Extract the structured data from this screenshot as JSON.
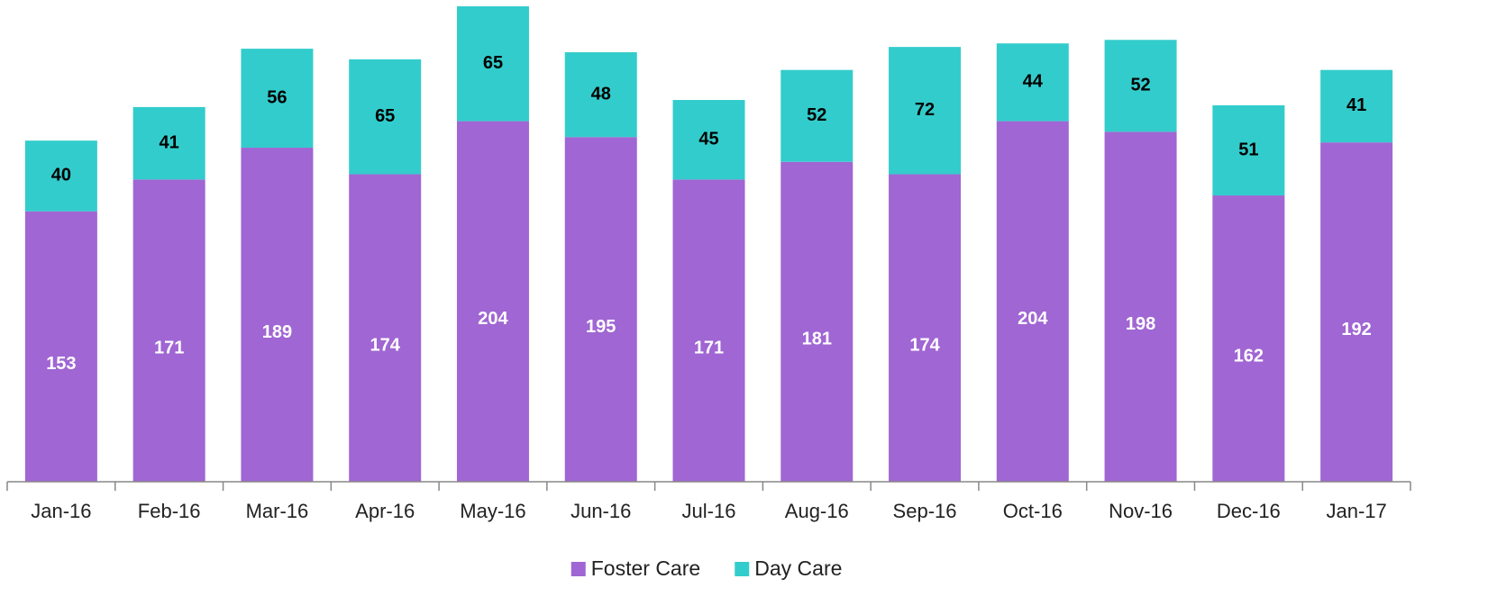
{
  "chart_data": {
    "type": "stacked_bar",
    "categories": [
      "Jan-16",
      "Feb-16",
      "Mar-16",
      "Apr-16",
      "May-16",
      "Jun-16",
      "Jul-16",
      "Aug-16",
      "Sep-16",
      "Oct-16",
      "Nov-16",
      "Dec-16",
      "Jan-17"
    ],
    "series": [
      {
        "name": "Foster Care",
        "color": "#a066d3",
        "values": [
          153,
          171,
          189,
          174,
          204,
          195,
          171,
          181,
          174,
          204,
          198,
          162,
          192
        ]
      },
      {
        "name": "Day Care",
        "color": "#33cccc",
        "values": [
          40,
          41,
          56,
          65,
          65,
          48,
          45,
          52,
          72,
          44,
          52,
          51,
          41
        ]
      }
    ],
    "legend": "bottom"
  }
}
